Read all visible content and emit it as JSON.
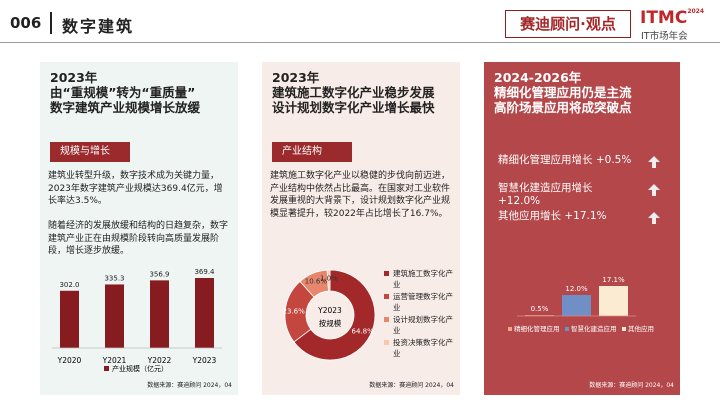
{
  "header": {
    "number": "006",
    "title": "数字建筑",
    "brand": "赛迪顾问·观点",
    "logo": "ITMC",
    "logo_year": "2024",
    "logo_sub": "IT市场年会"
  },
  "panels": [
    {
      "title": [
        "2023年",
        "由“重规模”转为“重质量”",
        "数字建筑产业规模增长放缓"
      ],
      "tag": "规模与增长",
      "paragraphs": [
        "建筑业转型升级，数字技术成为关键力量，2023年数字建筑产业规模达369.4亿元，增长率达3.5%。",
        "随着经济的发展放缓和结构的日趋复杂，数字建筑产业正在由规模阶段转向高质量发展阶段，增长逐步放缓。"
      ],
      "source": "数据来源：赛迪顾问 2024，04"
    },
    {
      "title": [
        "2023年",
        "建筑施工数字化产业稳步发展",
        "设计规划数字化产业增长最快"
      ],
      "tag": "产业结构",
      "paragraphs": [
        "建筑施工数字化产业以稳健的步伐向前迈进，产业结构中依然占比最高。在国家对工业软件发展重视的大背景下，设计规划数字化产业规模显著提升，较2022年占比增长了16.7%。"
      ],
      "source": "数据来源：赛迪顾问 2024，04"
    },
    {
      "title": [
        "2024-2026年",
        "精细化管理应用仍是主流",
        "高阶场景应用将成突破点"
      ],
      "rows": [
        {
          "label": "精细化管理应用增长",
          "value": "+0.5%"
        },
        {
          "label": "智慧化建造应用增长",
          "value": "+12.0%"
        },
        {
          "label": "其他应用增长",
          "value": "+17.1%"
        }
      ],
      "source": "数据来源：赛迪顾问 2024，04"
    }
  ],
  "chart_data": [
    {
      "type": "bar",
      "categories": [
        "Y2020",
        "Y2021",
        "Y2022",
        "Y2023"
      ],
      "values": [
        302.0,
        335.3,
        356.9,
        369.4
      ],
      "value_labels": [
        "302.0",
        "335.3",
        "356.9",
        "369.4"
      ],
      "series_name": "产业规模（亿元）",
      "color": "#861c1f"
    },
    {
      "type": "pie",
      "center_text": [
        "Y2023",
        "按规模"
      ],
      "categories": [
        "建筑施工数字化产业",
        "运营管理数字化产业",
        "设计规划数字化产业",
        "投资决策数字化产业"
      ],
      "values": [
        64.8,
        23.6,
        10.6,
        1.0
      ],
      "value_labels": [
        "64.8%",
        "23.6%",
        "10.6%",
        "1.0%"
      ],
      "colors": [
        "#a3282a",
        "#c4473f",
        "#e8866c",
        "#f6c9ac"
      ]
    },
    {
      "type": "bar",
      "categories": [
        "精细化管理应用",
        "智慧化建造应用",
        "其他应用"
      ],
      "values": [
        0.5,
        12.0,
        17.1
      ],
      "value_labels": [
        "0.5%",
        "12.0%",
        "17.1%"
      ],
      "colors": [
        "#f2a58c",
        "#6f8fc6",
        "#fcebd3"
      ]
    }
  ]
}
